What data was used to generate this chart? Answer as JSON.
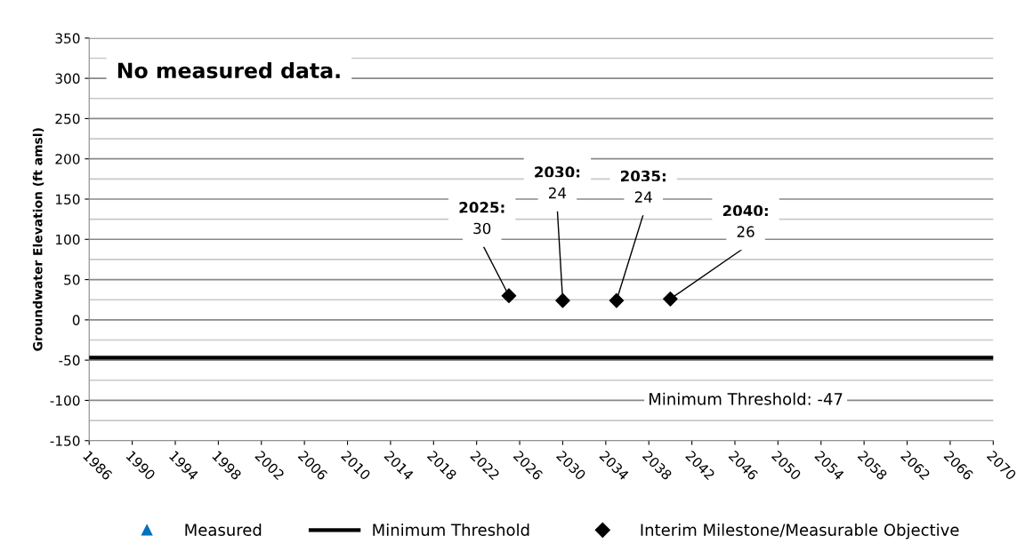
{
  "chart_data": {
    "type": "scatter",
    "ylabel": "Groundwater Elevation (ft amsl)",
    "xlim": [
      1986,
      2070
    ],
    "xticks": [
      1986,
      1990,
      1994,
      1998,
      2002,
      2006,
      2010,
      2014,
      2018,
      2022,
      2026,
      2030,
      2034,
      2038,
      2042,
      2046,
      2050,
      2054,
      2058,
      2062,
      2066,
      2070
    ],
    "ylim": [
      -150,
      350
    ],
    "yticks": [
      -150,
      {
        "value": -125,
        "label": null
      },
      -100,
      {
        "value": -75,
        "label": null
      },
      -50,
      {
        "value": -25,
        "label": null
      },
      0,
      {
        "value": 25,
        "label": null
      },
      50,
      {
        "value": 75,
        "label": null
      },
      100,
      {
        "value": 125,
        "label": null
      },
      150,
      {
        "value": 175,
        "label": null
      },
      200,
      {
        "value": 225,
        "label": null
      },
      250,
      {
        "value": 275,
        "label": null
      },
      300,
      {
        "value": 325,
        "label": null
      },
      350
    ],
    "grid": "y",
    "legend": "bottom",
    "series": [
      {
        "name": "Measured",
        "marker": "triangle",
        "color": "#0070c0"
      },
      {
        "name": "Minimum Threshold",
        "type": "line",
        "marker": "none",
        "line_style": "solid",
        "color": "#000000",
        "x": [
          1986,
          2070
        ],
        "values": [
          -47,
          -47
        ]
      },
      {
        "name": "Interim Milestone/Measurable Objective",
        "marker": "diamond",
        "color": "#000000",
        "x": [
          2025,
          2030,
          2035,
          2040
        ],
        "values": [
          30,
          24,
          24,
          26
        ]
      }
    ],
    "annotations": [
      "No measured data.",
      {
        "text": "2025:\n30",
        "x": 2025,
        "y": 30
      },
      {
        "text": "2030:\n24",
        "x": 2030,
        "y": 24
      },
      {
        "text": "2035:\n24",
        "x": 2035,
        "y": 24
      },
      {
        "text": "2040:\n26",
        "x": 2040,
        "y": 26
      },
      {
        "text": "Minimum Threshold: -47",
        "x": 2047,
        "y": -47
      }
    ]
  }
}
